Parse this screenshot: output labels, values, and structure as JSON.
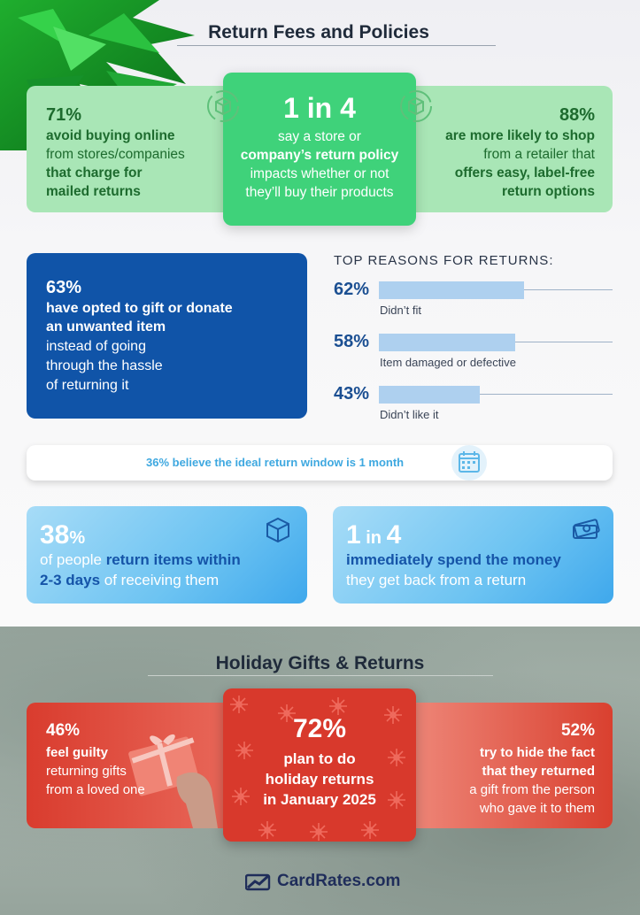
{
  "header": {
    "title": "Return Fees and Policies"
  },
  "stat_left": {
    "pct": "71%",
    "line1": "avoid buying online",
    "line2": "from stores/companies",
    "line3": "that charge for",
    "line4": "mailed returns"
  },
  "stat_mid": {
    "big": "1 in 4",
    "line1": "say a store or",
    "line2": "company’s return policy",
    "line3": "impacts whether or not",
    "line4": "they’ll buy their products"
  },
  "stat_right": {
    "pct": "88%",
    "line1": "are more likely to shop",
    "line2": "from a retailer that",
    "line3": "offers easy, label-free",
    "line4": "return options"
  },
  "gift_card": {
    "pct": "63%",
    "line1": "have opted to gift or donate",
    "line2": "an unwanted item",
    "line3": "instead of going",
    "line4": "through the hassle",
    "line5": "of returning it"
  },
  "reasons": {
    "title": "TOP REASONS FOR RETURNS:",
    "items": [
      {
        "pct": "62%",
        "value": 62,
        "label": "Didn’t fit"
      },
      {
        "pct": "58%",
        "value": 58,
        "label": "Item damaged or defective"
      },
      {
        "pct": "43%",
        "value": 43,
        "label": "Didn’t like it"
      }
    ]
  },
  "window": {
    "text": "36% believe the ideal return window is 1 month"
  },
  "return_days": {
    "big": "38",
    "big_suffix": "%",
    "line1_a": "of people ",
    "line1_b": "return items within",
    "line2_a": "2-3 days",
    "line2_b": " of receiving them"
  },
  "spend": {
    "big_a": "1",
    "big_b": " in ",
    "big_c": "4",
    "line1": "immediately spend the money",
    "line2": "they get back from a return"
  },
  "holiday": {
    "title": "Holiday Gifts & Returns"
  },
  "h_left": {
    "pct": "46%",
    "line1": "feel guilty",
    "line2": "returning gifts",
    "line3": "from a loved one"
  },
  "h_mid": {
    "pct": "72%",
    "line1": "plan to do",
    "line2": "holiday returns",
    "line3": "in January 2025"
  },
  "h_right": {
    "pct": "52%",
    "line1": "try to hide the fact",
    "line2": "that they returned",
    "line3": "a gift from the person",
    "line4": "who gave it to them"
  },
  "footer": {
    "brand": "CardRates.com"
  },
  "colors": {
    "green_dark": "#1d6b2e",
    "blue_dark": "#1054a8",
    "red": "#d8392c",
    "sky": "#3fa8ec"
  }
}
